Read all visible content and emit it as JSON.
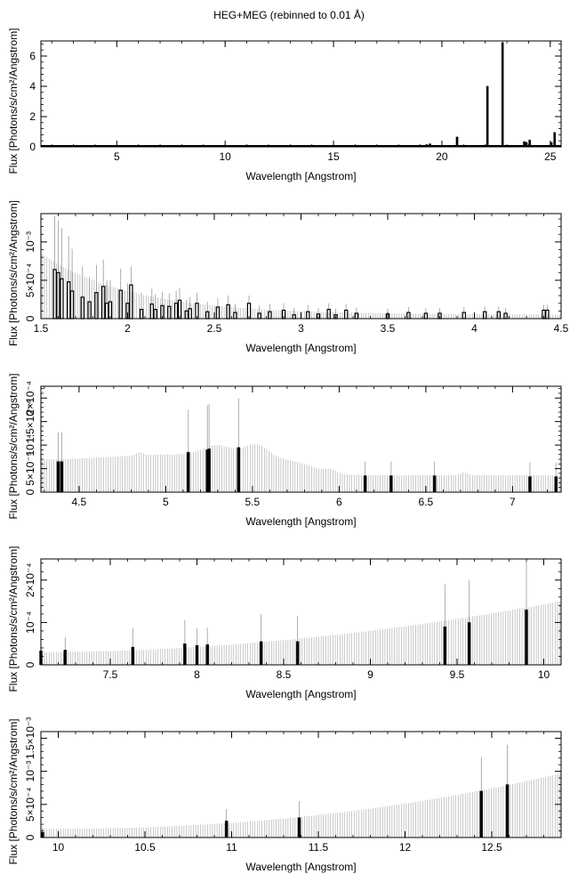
{
  "title": "HEG+MEG (rebinned to 0.01 Å)",
  "colors": {
    "axis": "#000000",
    "errorbar": "#b0b0b0",
    "data": "#000000",
    "background": "#ffffff"
  },
  "chart_data": [
    {
      "type": "bar",
      "title": "HEG+MEG (rebinned to 0.01 Å)",
      "xlabel": "Wavelength [Angstrom]",
      "ylabel": "Flux [Photons/s/cm²/Angstrom]",
      "xlim": [
        1.5,
        25.5
      ],
      "ylim": [
        0,
        7
      ],
      "x_ticks": [
        5,
        10,
        15,
        20,
        25
      ],
      "x_tick_labels": [
        "5",
        "10",
        "15",
        "20",
        "25"
      ],
      "y_ticks": [
        0,
        2,
        4,
        6
      ],
      "y_tick_labels": [
        "0",
        "2",
        "4",
        "6"
      ],
      "series": [
        {
          "x": [
            19.3,
            19.45,
            20.7,
            22.1,
            22.8,
            23.8,
            23.9,
            24.05,
            25.05,
            25.2
          ],
          "y": [
            0.15,
            0.2,
            0.65,
            4.0,
            6.9,
            0.35,
            0.3,
            0.45,
            0.3,
            0.95
          ],
          "err": [
            0.03,
            0.03,
            0.05,
            0.08,
            0.1,
            0.04,
            0.04,
            0.05,
            0.04,
            0.06
          ]
        }
      ]
    },
    {
      "type": "bar",
      "xlabel": "Wavelength [Angstrom]",
      "ylabel": "Flux [Photons/s/cm²/Angstrom]",
      "xlim": [
        1.5,
        4.5
      ],
      "ylim": [
        0,
        0.00137
      ],
      "x_ticks": [
        1.5,
        2,
        2.5,
        3,
        3.5,
        4,
        4.5
      ],
      "x_tick_labels": [
        "1.5",
        "2",
        "2.5",
        "3",
        "3.5",
        "4",
        "4.5"
      ],
      "y_ticks": [
        0,
        0.0005,
        0.001
      ],
      "y_tick_labels": [
        "0",
        "5×10⁻⁴",
        "10⁻³"
      ],
      "series": [
        {
          "x": [
            1.58,
            1.6,
            1.62,
            1.66,
            1.68,
            1.74,
            1.78,
            1.82,
            1.86,
            1.88,
            1.9,
            1.96,
            2.0,
            2.02,
            2.08,
            2.14,
            2.16,
            2.2,
            2.24,
            2.28,
            2.3,
            2.34,
            2.36,
            2.4,
            2.46,
            2.52,
            2.58,
            2.62,
            2.7,
            2.76,
            2.82,
            2.9,
            2.96,
            3.04,
            3.1,
            3.16,
            3.2,
            3.26,
            3.32,
            3.5,
            3.62,
            3.72,
            3.8,
            3.94,
            4.06,
            4.14,
            4.18,
            4.4,
            4.42
          ],
          "y": [
            0.00064,
            0.0006,
            0.00052,
            0.00048,
            0.00036,
            0.00028,
            0.00022,
            0.00034,
            0.00042,
            0.0002,
            0.00022,
            0.00037,
            0.0002,
            0.00044,
            0.00012,
            0.00019,
            0.00012,
            0.00017,
            0.00016,
            0.0002,
            0.00024,
            0.0001,
            0.00013,
            0.0002,
            9e-05,
            0.00015,
            0.00018,
            8e-05,
            0.0002,
            7e-05,
            9e-05,
            0.00011,
            5e-05,
            9e-05,
            6e-05,
            0.00012,
            5e-05,
            0.00011,
            7e-05,
            6e-05,
            8e-05,
            7e-05,
            7e-05,
            8e-05,
            9e-05,
            9e-05,
            7e-05,
            0.00011,
            0.00011
          ],
          "err": [
            0.0007,
            0.00068,
            0.00066,
            0.0006,
            0.00055,
            0.0004,
            0.00032,
            0.00036,
            0.00035,
            0.0003,
            0.00028,
            0.00028,
            0.00026,
            0.00024,
            0.00022,
            0.0002,
            0.0002,
            0.00018,
            0.00017,
            0.00016,
            0.00016,
            0.00015,
            0.00015,
            0.00014,
            0.00013,
            0.00012,
            0.00012,
            0.00011,
            0.0001,
            0.0001,
            0.0001,
            9e-05,
            9e-05,
            9e-05,
            8e-05,
            8e-05,
            8e-05,
            8e-05,
            8e-05,
            7e-05,
            7e-05,
            7e-05,
            7e-05,
            7e-05,
            7e-05,
            7e-05,
            7e-05,
            7e-05,
            7e-05
          ]
        }
      ]
    },
    {
      "type": "bar",
      "xlabel": "Wavelength [Angstrom]",
      "ylabel": "Flux [Photons/s/cm²/Angstrom]",
      "xlim": [
        4.28,
        7.28
      ],
      "ylim": [
        0,
        0.000225
      ],
      "x_ticks": [
        4.5,
        5,
        5.5,
        6,
        6.5,
        7
      ],
      "x_tick_labels": [
        "4.5",
        "5",
        "5.5",
        "6",
        "6.5",
        "7"
      ],
      "y_ticks": [
        0,
        5e-05,
        0.0001,
        0.00015,
        0.0002
      ],
      "y_tick_labels": [
        "0",
        "5×10⁻⁵",
        "10⁻⁴",
        "1.5×10⁻⁴",
        "2×10⁻⁴"
      ],
      "series": [
        {
          "x": [
            4.38,
            4.4,
            5.13,
            5.24,
            5.25,
            5.42,
            6.15,
            6.3,
            6.55,
            7.1,
            7.25
          ],
          "y": [
            6.5e-05,
            6.5e-05,
            8.5e-05,
            9e-05,
            9.2e-05,
            9.5e-05,
            3.5e-05,
            3.5e-05,
            3.5e-05,
            3.3e-05,
            3.3e-05
          ],
          "err": [
            6.2e-05,
            6.2e-05,
            9e-05,
            9.5e-05,
            9.5e-05,
            0.000105,
            3e-05,
            3e-05,
            3e-05,
            3e-05,
            3e-05
          ]
        }
      ]
    },
    {
      "type": "bar",
      "xlabel": "Wavelength [Angstrom]",
      "ylabel": "Flux [Photons/s/cm²/Angstrom]",
      "xlim": [
        7.1,
        10.1
      ],
      "ylim": [
        0,
        0.00025
      ],
      "x_ticks": [
        7.5,
        8,
        8.5,
        9,
        9.5,
        10
      ],
      "x_tick_labels": [
        "7.5",
        "8",
        "8.5",
        "9",
        "9.5",
        "10"
      ],
      "y_ticks": [
        0,
        0.0001,
        0.0002
      ],
      "y_tick_labels": [
        "0",
        "10⁻⁴",
        "2×10⁻⁴"
      ],
      "series": [
        {
          "x": [
            7.1,
            7.24,
            7.63,
            7.93,
            8.0,
            8.06,
            8.37,
            8.58,
            9.43,
            9.57,
            9.9
          ],
          "y": [
            3.3e-05,
            3.5e-05,
            4.2e-05,
            5e-05,
            4.6e-05,
            4.8e-05,
            5.5e-05,
            5.5e-05,
            9e-05,
            0.0001,
            0.00013
          ],
          "err": [
            2.8e-05,
            3e-05,
            4.5e-05,
            5.5e-05,
            4e-05,
            4e-05,
            6.5e-05,
            6e-05,
            0.0001,
            0.0001,
            0.00012
          ]
        }
      ]
    },
    {
      "type": "bar",
      "xlabel": "Wavelength [Angstrom]",
      "ylabel": "Flux [Photons/s/cm²/Angstrom]",
      "xlim": [
        9.9,
        12.9
      ],
      "ylim": [
        0,
        0.0016
      ],
      "x_ticks": [
        10,
        10.5,
        11,
        11.5,
        12,
        12.5
      ],
      "x_tick_labels": [
        "10",
        "10.5",
        "11",
        "11.5",
        "12",
        "12.5"
      ],
      "y_ticks": [
        0,
        0.0005,
        0.001,
        0.0015
      ],
      "y_tick_labels": [
        "0",
        "5×10⁻⁴",
        "10⁻³",
        "1.5×10⁻³"
      ],
      "series": [
        {
          "x": [
            9.91,
            10.97,
            11.39,
            12.44,
            12.59
          ],
          "y": [
            8e-05,
            0.00025,
            0.0003,
            0.0007,
            0.0008
          ],
          "err": [
            7e-05,
            0.00018,
            0.00025,
            0.00052,
            0.0006
          ]
        }
      ]
    }
  ]
}
